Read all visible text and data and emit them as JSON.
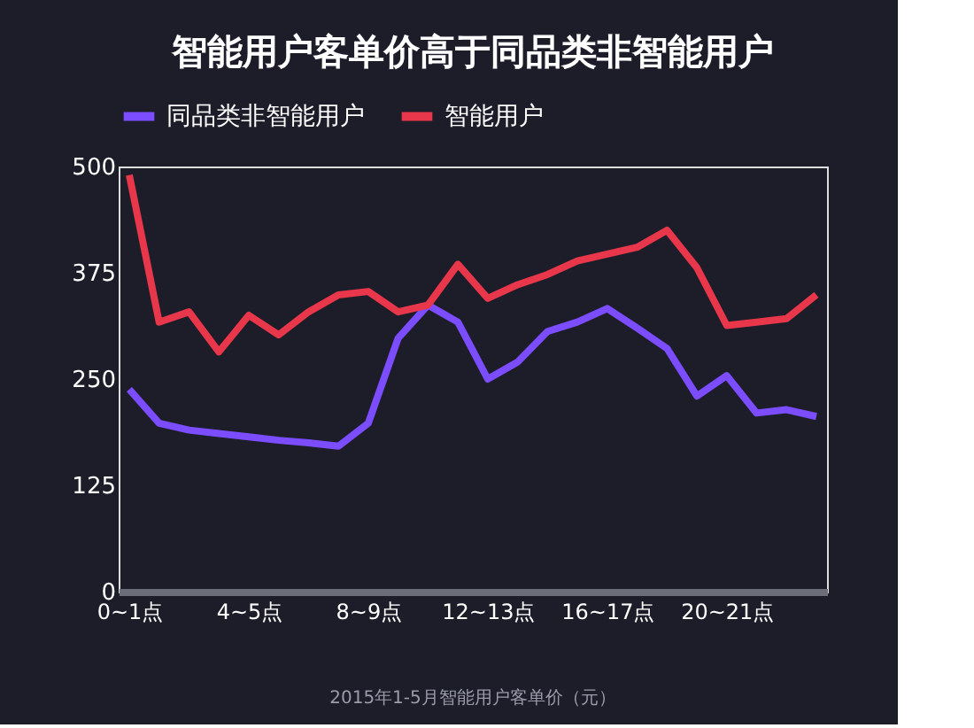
{
  "chart_data": {
    "type": "line",
    "title": "智能用户客单价高于同品类非智能用户",
    "categories": [
      "0~1点",
      null,
      null,
      null,
      "4~5点",
      null,
      null,
      null,
      "8~9点",
      null,
      null,
      null,
      "12~13点",
      null,
      null,
      null,
      "16~17点",
      null,
      null,
      null,
      "20~21点",
      null,
      null,
      null
    ],
    "series": [
      {
        "name": "同品类非智能用户",
        "color": "#7b4dff",
        "values": [
          238,
          198,
          190,
          186,
          182,
          178,
          175,
          171,
          198,
          298,
          337,
          317,
          250,
          270,
          306,
          317,
          333,
          310,
          286,
          230,
          254,
          210,
          214,
          206
        ]
      },
      {
        "name": "智能用户",
        "color": "#e8374a",
        "values": [
          490,
          317,
          329,
          282,
          325,
          302,
          329,
          349,
          353,
          329,
          337,
          385,
          345,
          361,
          373,
          389,
          397,
          405,
          425,
          381,
          313,
          317,
          321,
          349
        ]
      }
    ],
    "ylim": [
      0,
      500
    ],
    "yticks": [
      0,
      125,
      250,
      375,
      500
    ],
    "grid": false,
    "legend": "top",
    "line_style": "solid",
    "marker": "none",
    "annotations": [
      "2015年1-5月智能用户客单价（元）"
    ]
  }
}
